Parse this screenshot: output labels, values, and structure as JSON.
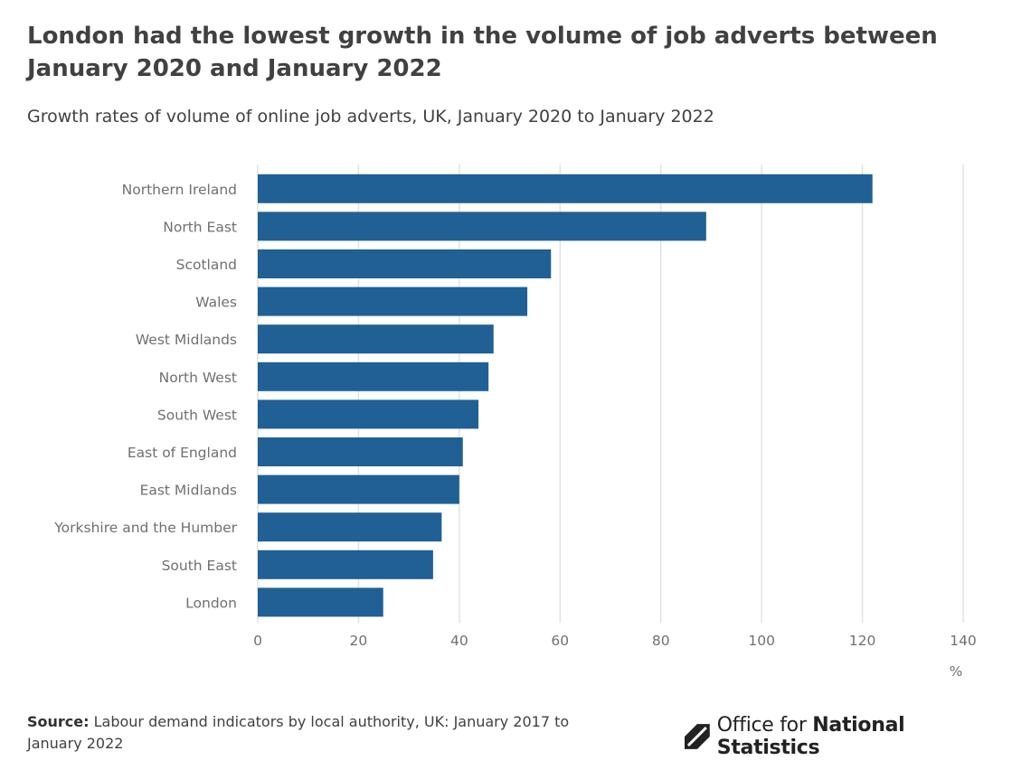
{
  "title": "London had the lowest growth in the volume of job adverts between January 2020 and January 2022",
  "subtitle": "Growth rates of volume of online job adverts, UK, January 2020 to January 2022",
  "source": {
    "label": "Source:",
    "text": "Labour demand indicators by local authority, UK: January 2017 to January 2022"
  },
  "logo": {
    "prefix": "Office for",
    "bold": "National Statistics",
    "icon": "ons-logo-icon"
  },
  "chart_data": {
    "type": "bar",
    "orientation": "horizontal",
    "categories": [
      "Northern Ireland",
      "North East",
      "Scotland",
      "Wales",
      "West Midlands",
      "North West",
      "South West",
      "East of England",
      "East Midlands",
      "Yorkshire and the Humber",
      "South East",
      "London"
    ],
    "values": [
      122,
      89,
      58.2,
      53.5,
      46.8,
      45.8,
      43.8,
      40.7,
      40,
      36.5,
      34.8,
      24.9
    ],
    "xticks": [
      0,
      20,
      40,
      60,
      80,
      100,
      120,
      140
    ],
    "xlim": [
      0,
      140
    ],
    "xunit": "%",
    "grid": true,
    "bar_color": "#206095",
    "grid_color": "#e2e2e3"
  }
}
